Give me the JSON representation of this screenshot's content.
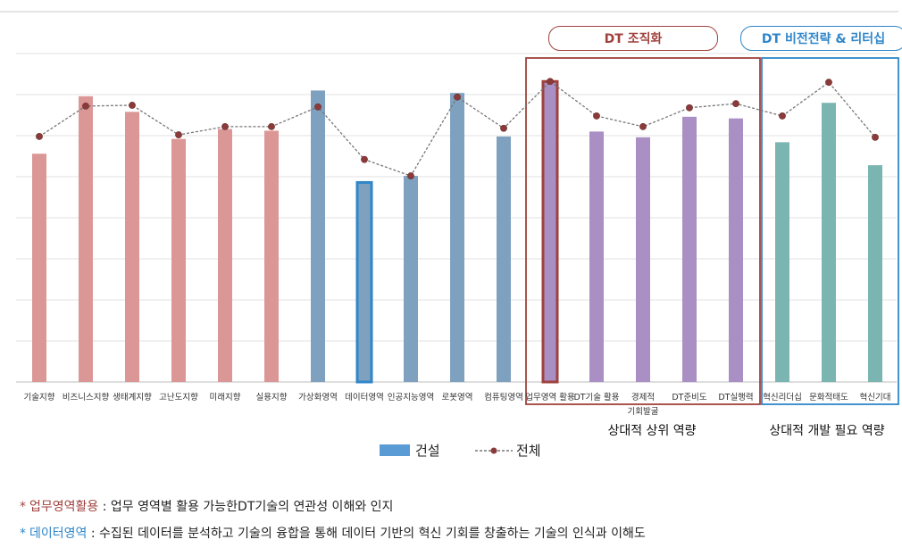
{
  "chart_data": {
    "type": "bar",
    "categories": [
      "기술지향",
      "비즈니스지향",
      "생태계지향",
      "고난도지향",
      "미래지향",
      "실용지향",
      "가상화영역",
      "데이터영역",
      "인공지능영역",
      "로봇영역",
      "컴퓨팅영역",
      "업무영역 활용",
      "DT기술 활용",
      "경제적\n기회발굴",
      "DT준비도",
      "DT실행력",
      "혁신리더십",
      "문화적태도",
      "혁신기대"
    ],
    "series": [
      {
        "name": "건설",
        "type": "bar",
        "values": [
          2.78,
          3.48,
          3.29,
          2.96,
          3.08,
          3.06,
          3.55,
          2.43,
          2.51,
          3.52,
          2.99,
          3.66,
          3.05,
          2.98,
          3.23,
          3.21,
          2.92,
          3.4,
          2.64
        ]
      },
      {
        "name": "전체",
        "type": "line",
        "values": [
          2.99,
          3.36,
          3.37,
          3.01,
          3.11,
          3.11,
          3.35,
          2.71,
          2.51,
          3.47,
          3.09,
          3.66,
          3.24,
          3.11,
          3.34,
          3.39,
          3.24,
          3.65,
          2.98
        ]
      }
    ],
    "ylim": [
      0,
      4
    ],
    "gridlines": 8,
    "title": "",
    "xlabel": "",
    "ylabel": ""
  },
  "colors": {
    "bar_groups": [
      "#db9796",
      "#db9796",
      "#db9796",
      "#db9796",
      "#db9796",
      "#db9796",
      "#7fa1c0",
      "#7fa1c0",
      "#7fa1c0",
      "#7fa1c0",
      "#7fa1c0",
      "#a98fc3",
      "#a98fc3",
      "#a98fc3",
      "#a98fc3",
      "#a98fc3",
      "#7ab5b2",
      "#7ab5b2",
      "#7ab5b2"
    ],
    "highlight_red": "#a0413d",
    "highlight_blue": "#2f86c9",
    "line": "#777777",
    "marker": "#8b3a3a"
  },
  "annotations": {
    "pill_red": "DT 조직화",
    "pill_blue": "DT 비전전략 & 리터십",
    "group_upper": "상대적 상위 역량",
    "group_needed": "상대적 개발 필요 역량"
  },
  "legend": {
    "bar": "건설",
    "line": "전체"
  },
  "notes": [
    {
      "term": "업무영역활용",
      "desc": " : 업무 영역별 활용 가능한DT기술의 연관성 이해와 인지"
    },
    {
      "term": "데이터영역",
      "desc": " : 수집된 데이터를 분석하고 기술의 융합을 통해 데이터 기반의 혁신 기회를 창출하는 기술의 인식과 이해도"
    }
  ],
  "star": "*"
}
